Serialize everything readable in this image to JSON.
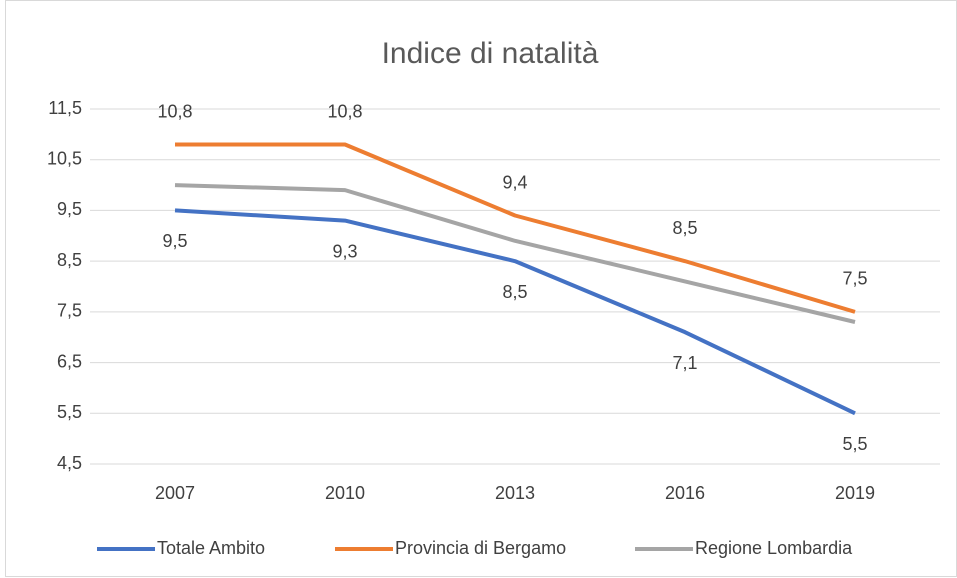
{
  "chart_data": {
    "type": "line",
    "title": "Indice di natalità",
    "categories": [
      "2007",
      "2010",
      "2013",
      "2016",
      "2019"
    ],
    "series": [
      {
        "name": "Totale Ambito",
        "color": "#4472c4",
        "values": [
          9.5,
          9.3,
          8.5,
          7.1,
          5.5
        ],
        "value_labels": [
          "9,5",
          "9,3",
          "8,5",
          "7,1",
          "5,5"
        ]
      },
      {
        "name": "Provincia di Bergamo",
        "color": "#ed7d31",
        "values": [
          10.8,
          10.8,
          9.4,
          8.5,
          7.5
        ],
        "value_labels": [
          "10,8",
          "10,8",
          "9,4",
          "8,5",
          "7,5"
        ]
      },
      {
        "name": "Regione Lombardia",
        "color": "#a5a5a5",
        "values": [
          10.0,
          9.9,
          8.9,
          8.1,
          7.3
        ]
      }
    ],
    "ylim": [
      4.5,
      11.5
    ],
    "yticks": [
      {
        "value": 4.5,
        "label": "4,5"
      },
      {
        "value": 5.5,
        "label": "5,5"
      },
      {
        "value": 6.5,
        "label": "6,5"
      },
      {
        "value": 7.5,
        "label": "7,5"
      },
      {
        "value": 8.5,
        "label": "8,5"
      },
      {
        "value": 9.5,
        "label": "9,5"
      },
      {
        "value": 10.5,
        "label": "10,5"
      },
      {
        "value": 11.5,
        "label": "11,5"
      }
    ],
    "grid": true,
    "legend": "bottom"
  }
}
